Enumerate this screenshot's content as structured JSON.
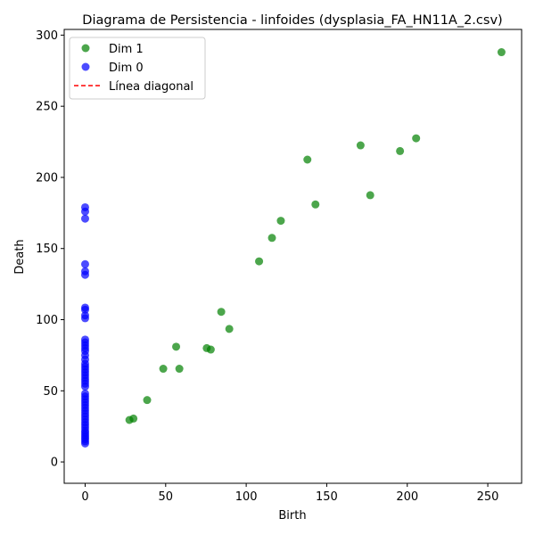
{
  "chart_data": {
    "type": "scatter",
    "title": "Diagrama de Persistencia - linfoides (dysplasia_FA_HN11A_2.csv)",
    "xlabel": "Birth",
    "ylabel": "Death",
    "xlim": [
      -13,
      271
    ],
    "ylim": [
      -15,
      304
    ],
    "xticks": [
      0,
      50,
      100,
      150,
      200,
      250
    ],
    "yticks": [
      0,
      50,
      100,
      150,
      200,
      250,
      300
    ],
    "grid": false,
    "legend_position": "top-left",
    "series": [
      {
        "name": "Dim 1",
        "color": "#008000",
        "points": [
          [
            27.5,
            29.5
          ],
          [
            30,
            30.5
          ],
          [
            38.5,
            43.5
          ],
          [
            48.5,
            65.5
          ],
          [
            56.5,
            81
          ],
          [
            58.5,
            65.5
          ],
          [
            75.5,
            80
          ],
          [
            78,
            79
          ],
          [
            84.5,
            105.5
          ],
          [
            89.5,
            93.5
          ],
          [
            108,
            141
          ],
          [
            116,
            157.5
          ],
          [
            121.5,
            169.5
          ],
          [
            138,
            212.5
          ],
          [
            143,
            181
          ],
          [
            171,
            222.5
          ],
          [
            177,
            187.5
          ],
          [
            195.5,
            218.5
          ],
          [
            205.5,
            227.5
          ],
          [
            258.5,
            288
          ]
        ]
      },
      {
        "name": "Dim 0",
        "color": "#0000ff",
        "points": [
          [
            0,
            13
          ],
          [
            0,
            14.5
          ],
          [
            0,
            16
          ],
          [
            0,
            17.5
          ],
          [
            0,
            19
          ],
          [
            0,
            20.5
          ],
          [
            0,
            22
          ],
          [
            0,
            24
          ],
          [
            0,
            26
          ],
          [
            0,
            28
          ],
          [
            0,
            30
          ],
          [
            0,
            32
          ],
          [
            0,
            34
          ],
          [
            0,
            36
          ],
          [
            0,
            38
          ],
          [
            0,
            40
          ],
          [
            0,
            42
          ],
          [
            0,
            44
          ],
          [
            0,
            46
          ],
          [
            0,
            48
          ],
          [
            0,
            53
          ],
          [
            0,
            55
          ],
          [
            0,
            57
          ],
          [
            0,
            59
          ],
          [
            0,
            61
          ],
          [
            0,
            63
          ],
          [
            0,
            65
          ],
          [
            0,
            67
          ],
          [
            0,
            69
          ],
          [
            0,
            72
          ],
          [
            0,
            75
          ],
          [
            0,
            78
          ],
          [
            0,
            80
          ],
          [
            0,
            82
          ],
          [
            0,
            84
          ],
          [
            0,
            86
          ],
          [
            0,
            101
          ],
          [
            0,
            103
          ],
          [
            0,
            107
          ],
          [
            0,
            108.5
          ],
          [
            0,
            131.5
          ],
          [
            0,
            134
          ],
          [
            0,
            139
          ],
          [
            0,
            171
          ],
          [
            0,
            176
          ],
          [
            0,
            179
          ]
        ]
      }
    ],
    "reference_line": {
      "name": "Línea diagonal",
      "color": "#ff0000",
      "style": "dashed"
    }
  }
}
